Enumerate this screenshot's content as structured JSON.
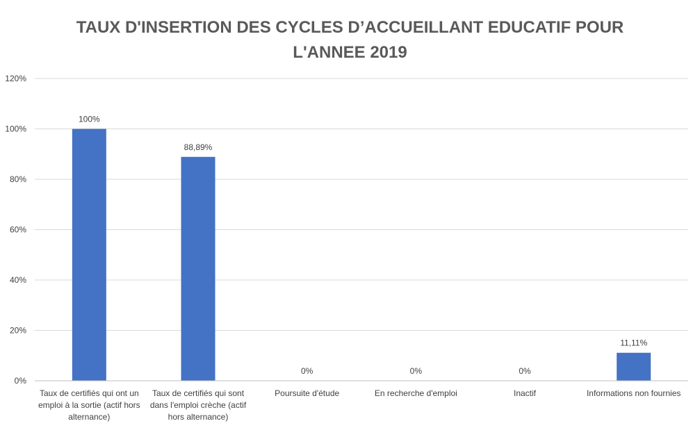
{
  "chart_data": {
    "type": "bar",
    "title_line1": "TAUX D'INSERTION DES CYCLES D’ACCUEILLANT EDUCATIF POUR",
    "title_line2": "L'ANNEE 2019",
    "xlabel": "",
    "ylabel": "",
    "ylim": [
      0,
      1.2
    ],
    "yticks": [
      "0%",
      "20%",
      "40%",
      "60%",
      "80%",
      "100%",
      "120%"
    ],
    "categories": [
      [
        "Taux de certifiés qui ont un",
        "emploi à la sortie (actif hors",
        "alternance)"
      ],
      [
        "Taux de certifiés qui sont",
        "dans l'emploi crèche (actif",
        "hors alternance)"
      ],
      [
        "Poursuite d'étude"
      ],
      [
        "En recherche d'emploi"
      ],
      [
        "Inactif"
      ],
      [
        "Informations non fournies"
      ]
    ],
    "values": [
      1.0,
      0.8889,
      0,
      0,
      0,
      0.1111
    ],
    "data_labels": [
      "100%",
      "88,89%",
      "0%",
      "0%",
      "0%",
      "11,11%"
    ],
    "bar_color": "#4472C4",
    "gridline_color": "#D9D9D9",
    "grid": true,
    "legend": "none"
  }
}
